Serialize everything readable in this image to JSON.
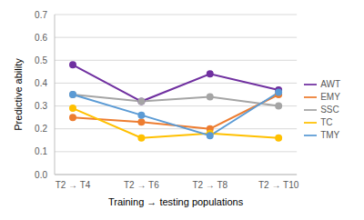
{
  "chart_data": {
    "type": "line",
    "x_label": "Training → testing populations",
    "y_label": "Predictive ability",
    "categories": [
      "T2 → T4",
      "T2 → T6",
      "T2 → T8",
      "T2 → T10"
    ],
    "series": [
      {
        "name": "AWT",
        "color": "#7030a0",
        "values": [
          0.48,
          0.32,
          0.44,
          0.37
        ]
      },
      {
        "name": "EMY",
        "color": "#ed7d31",
        "values": [
          0.25,
          0.23,
          0.2,
          0.35
        ]
      },
      {
        "name": "SSC",
        "color": "#a5a5a5",
        "values": [
          0.35,
          0.32,
          0.34,
          0.3
        ]
      },
      {
        "name": "TC",
        "color": "#ffc000",
        "values": [
          0.29,
          0.16,
          0.18,
          0.16
        ]
      },
      {
        "name": "TMY",
        "color": "#5b9bd5",
        "values": [
          0.35,
          0.26,
          0.17,
          0.36
        ]
      }
    ],
    "ylim": [
      0,
      0.7
    ],
    "yticks": [
      {
        "value": 0,
        "label": "0.0"
      },
      0.1,
      0.2,
      0.3,
      0.4,
      0.5,
      0.6,
      0.7
    ],
    "grid": true,
    "legend": "right",
    "marker": "circle"
  }
}
